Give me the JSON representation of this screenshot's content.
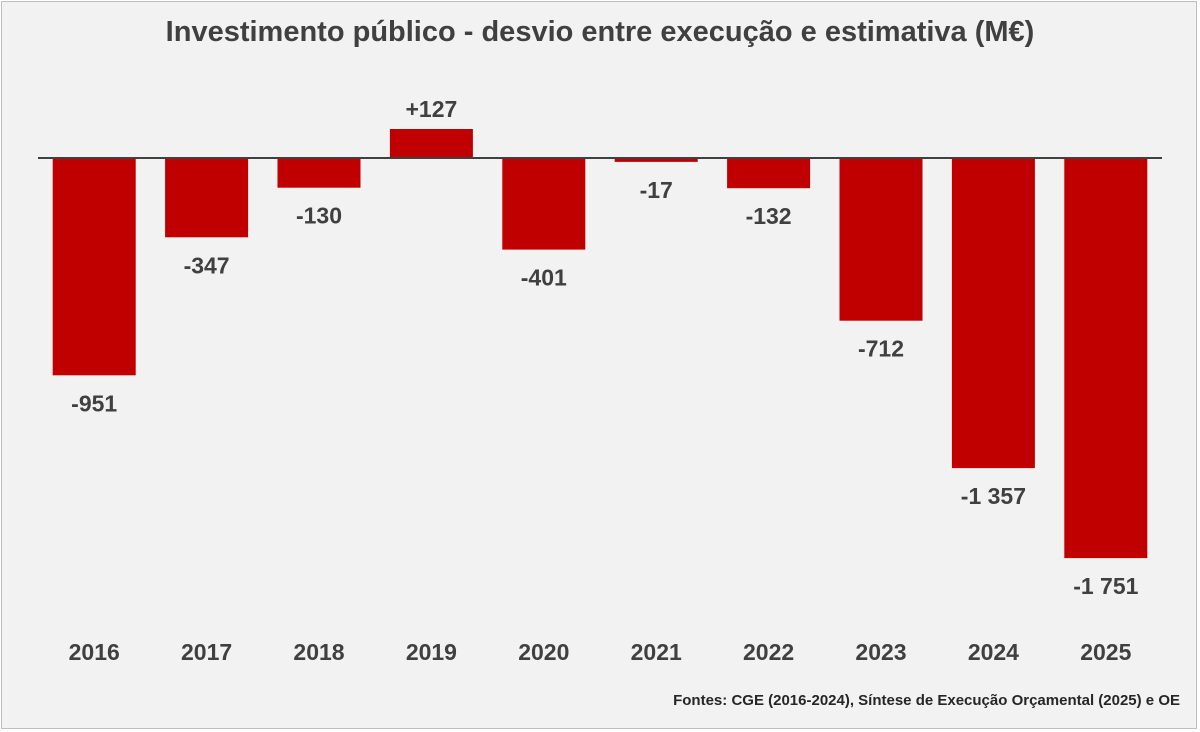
{
  "title": "Investimento público - desvio entre execução e estimativa (M€)",
  "source": "Fontes: CGE (2016-2024), Síntese de Execução Orçamental (2025) e OE",
  "colors": {
    "bar": "#c00000",
    "axis": "#404040",
    "label": "#404040",
    "background": "#f2f2f2"
  },
  "chart_data": {
    "type": "bar",
    "title": "Investimento público - desvio entre execução e estimativa (M€)",
    "xlabel": "",
    "ylabel": "",
    "categories": [
      "2016",
      "2017",
      "2018",
      "2019",
      "2020",
      "2021",
      "2022",
      "2023",
      "2024",
      "2025"
    ],
    "values": [
      -951,
      -347,
      -130,
      127,
      -401,
      -17,
      -132,
      -712,
      -1357,
      -1751
    ],
    "data_labels": [
      "-951",
      "-347",
      "-130",
      "+127",
      "-401",
      "-17",
      "-132",
      "-712",
      "-1 357",
      "-1 751"
    ],
    "grid": false,
    "legend": "none"
  }
}
